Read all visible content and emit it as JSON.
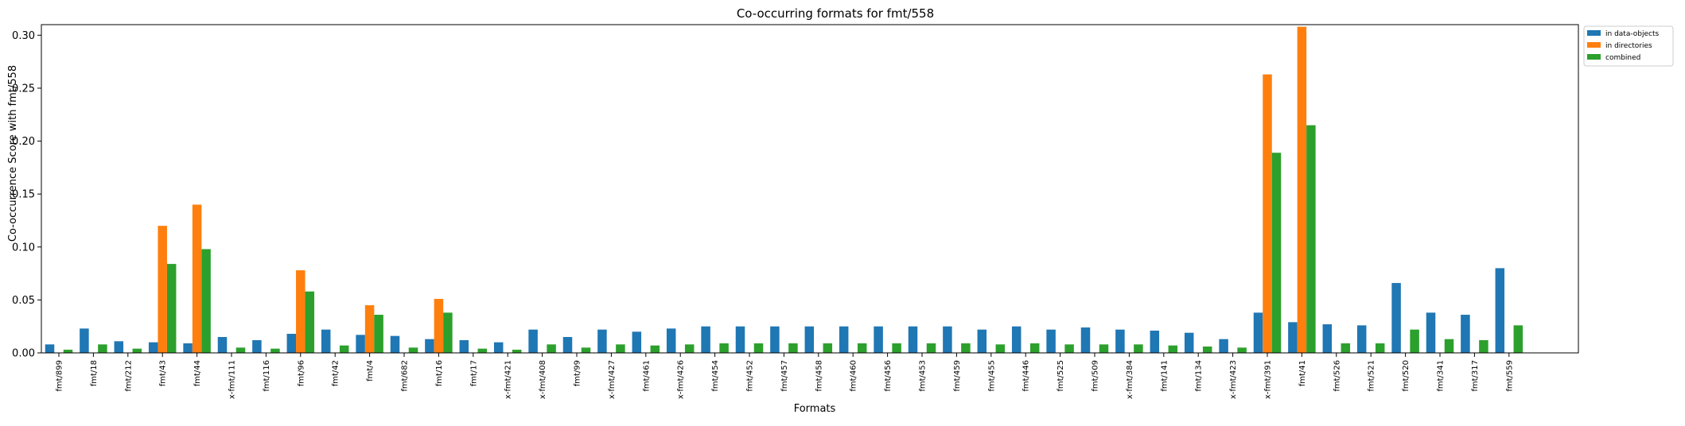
{
  "chart_data": {
    "type": "bar",
    "title": "Co-occurring formats for fmt/558",
    "xlabel": "Formats",
    "ylabel": "Co-occurrence Score with fmt/558",
    "ylim": [
      0,
      0.31
    ],
    "yticks": [
      0.0,
      0.05,
      0.1,
      0.15,
      0.2,
      0.25,
      0.3
    ],
    "ytick_labels": [
      "0.00",
      "0.05",
      "0.10",
      "0.15",
      "0.20",
      "0.25",
      "0.30"
    ],
    "grid": false,
    "legend_position": "upper-right-outside",
    "categories": [
      "fmt/899",
      "fmt/18",
      "fmt/212",
      "fmt/43",
      "fmt/44",
      "x-fmt/111",
      "fmt/116",
      "fmt/96",
      "fmt/42",
      "fmt/4",
      "fmt/682",
      "fmt/16",
      "fmt/17",
      "x-fmt/421",
      "x-fmt/408",
      "fmt/99",
      "x-fmt/427",
      "fmt/461",
      "x-fmt/426",
      "fmt/454",
      "fmt/452",
      "fmt/457",
      "fmt/458",
      "fmt/460",
      "fmt/456",
      "fmt/453",
      "fmt/459",
      "fmt/455",
      "fmt/446",
      "fmt/525",
      "fmt/509",
      "x-fmt/384",
      "fmt/141",
      "fmt/134",
      "x-fmt/423",
      "x-fmt/391",
      "fmt/41",
      "fmt/526",
      "fmt/521",
      "fmt/520",
      "fmt/341",
      "fmt/317",
      "fmt/559"
    ],
    "series": [
      {
        "name": "in data-objects",
        "color": "#1f77b4",
        "values": [
          0.008,
          0.023,
          0.011,
          0.01,
          0.009,
          0.015,
          0.012,
          0.018,
          0.022,
          0.017,
          0.016,
          0.013,
          0.012,
          0.01,
          0.022,
          0.015,
          0.022,
          0.02,
          0.023,
          0.025,
          0.025,
          0.025,
          0.025,
          0.025,
          0.025,
          0.025,
          0.025,
          0.022,
          0.025,
          0.022,
          0.024,
          0.022,
          0.021,
          0.019,
          0.013,
          0.038,
          0.029,
          0.027,
          0.026,
          0.066,
          0.038,
          0.036,
          0.08
        ]
      },
      {
        "name": "in directories",
        "color": "#ff7f0e",
        "values": [
          0,
          0,
          0,
          0.12,
          0.14,
          0,
          0,
          0.078,
          0,
          0.045,
          0,
          0.051,
          0,
          0,
          0,
          0,
          0,
          0,
          0,
          0,
          0,
          0,
          0,
          0,
          0,
          0,
          0,
          0,
          0,
          0,
          0,
          0,
          0,
          0,
          0,
          0.263,
          0.308,
          0,
          0,
          0,
          0,
          0,
          0
        ]
      },
      {
        "name": "combined",
        "color": "#2ca02c",
        "values": [
          0.003,
          0.008,
          0.004,
          0.084,
          0.098,
          0.005,
          0.004,
          0.058,
          0.007,
          0.036,
          0.005,
          0.038,
          0.004,
          0.003,
          0.008,
          0.005,
          0.008,
          0.007,
          0.008,
          0.009,
          0.009,
          0.009,
          0.009,
          0.009,
          0.009,
          0.009,
          0.009,
          0.008,
          0.009,
          0.008,
          0.008,
          0.008,
          0.007,
          0.006,
          0.005,
          0.189,
          0.215,
          0.009,
          0.009,
          0.022,
          0.013,
          0.012,
          0.026
        ]
      }
    ]
  }
}
